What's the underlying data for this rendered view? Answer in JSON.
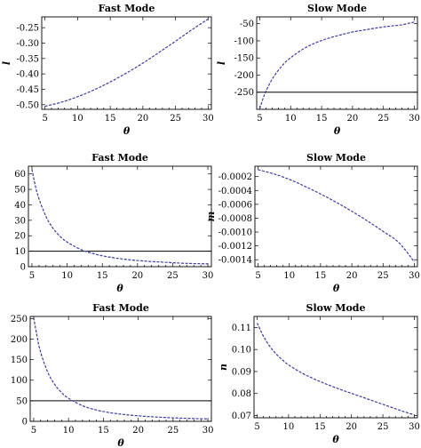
{
  "colors": {
    "curve": "#3a3aa8",
    "curve_shadow": "#9a9a9a",
    "frame": "#000000"
  },
  "chart_data": [
    {
      "type": "line",
      "title": "Fast Mode",
      "xlabel": "θ",
      "ylabel": "l",
      "xlim": [
        4.5,
        30.5
      ],
      "ylim": [
        -0.515,
        -0.215
      ],
      "xticks": [
        5,
        10,
        15,
        20,
        25,
        30
      ],
      "yticks": [
        -0.5,
        -0.45,
        -0.4,
        -0.35,
        -0.3,
        -0.25
      ],
      "ytick_labels": [
        "-0.50",
        "-0.45",
        "-0.40",
        "-0.35",
        "-0.30",
        "-0.25"
      ],
      "x": [
        5,
        7.5,
        10,
        12.5,
        15,
        17.5,
        20,
        22.5,
        25,
        27.5,
        30
      ],
      "y": [
        -0.505,
        -0.492,
        -0.474,
        -0.452,
        -0.426,
        -0.397,
        -0.365,
        -0.33,
        -0.294,
        -0.257,
        -0.222
      ],
      "hline": null
    },
    {
      "type": "line",
      "title": "Slow Mode",
      "xlabel": "θ",
      "ylabel": "l",
      "xlim": [
        4.5,
        30.5
      ],
      "ylim": [
        -300,
        -30
      ],
      "xticks": [
        5,
        10,
        15,
        20,
        25,
        30
      ],
      "yticks": [
        -250,
        -200,
        -150,
        -100,
        -50
      ],
      "ytick_labels": [
        "-250",
        "-200",
        "-150",
        "-100",
        "-50"
      ],
      "x": [
        5,
        5.5,
        6,
        7,
        8,
        9,
        10,
        12,
        14,
        16,
        18,
        20,
        22,
        24,
        26,
        28,
        30
      ],
      "y": [
        -298,
        -270,
        -247,
        -212,
        -186,
        -165,
        -149,
        -124,
        -106,
        -93,
        -83,
        -74,
        -68,
        -62,
        -57,
        -53,
        -45
      ],
      "hline": -250
    },
    {
      "type": "line",
      "title": "Fast Mode",
      "xlabel": "θ",
      "ylabel": "m",
      "xlim": [
        4.5,
        30.5
      ],
      "ylim": [
        0,
        65
      ],
      "xticks": [
        5,
        10,
        15,
        20,
        25,
        30
      ],
      "yticks": [
        0,
        10,
        20,
        30,
        40,
        50,
        60
      ],
      "ytick_labels": [
        "0",
        "10",
        "20",
        "30",
        "40",
        "50",
        "60"
      ],
      "x": [
        5,
        5.5,
        6,
        7,
        8,
        9,
        10,
        12,
        14,
        16,
        18,
        20,
        22,
        24,
        26,
        28,
        30
      ],
      "y": [
        63,
        52,
        44,
        32.4,
        24.8,
        19.6,
        15.9,
        11.0,
        8.1,
        6.2,
        4.9,
        4.0,
        3.3,
        2.8,
        2.3,
        2.0,
        1.8
      ],
      "hline": 10
    },
    {
      "type": "line",
      "title": "Slow Mode",
      "xlabel": "θ",
      "ylabel": "m",
      "xlim": [
        4.5,
        30.5
      ],
      "ylim": [
        -0.0015,
        -5e-05
      ],
      "xticks": [
        5,
        10,
        15,
        20,
        25,
        30
      ],
      "yticks": [
        -0.0002,
        -0.0004,
        -0.0006,
        -0.0008,
        -0.001,
        -0.0012,
        -0.0014
      ],
      "ytick_labels": [
        "-0.0002",
        "-0.0004",
        "-0.0006",
        "-0.0008",
        "-0.0010",
        "-0.0012",
        "-0.0014"
      ],
      "x": [
        5,
        7.5,
        10,
        12.5,
        15,
        17.5,
        20,
        22.5,
        25,
        27.5,
        30
      ],
      "y": [
        -0.0001,
        -0.00016,
        -0.00024,
        -0.00034,
        -0.00045,
        -0.00057,
        -0.0007,
        -0.00084,
        -0.00099,
        -0.00115,
        -0.00143
      ],
      "hline": null
    },
    {
      "type": "line",
      "title": "Fast Mode",
      "xlabel": "θ",
      "ylabel": "n",
      "xlim": [
        4.5,
        30.5
      ],
      "ylim": [
        0,
        255
      ],
      "xticks": [
        5,
        10,
        15,
        20,
        25,
        30
      ],
      "yticks": [
        0,
        50,
        100,
        150,
        200,
        250
      ],
      "ytick_labels": [
        "0",
        "50",
        "100",
        "150",
        "200",
        "250"
      ],
      "x": [
        5,
        5.5,
        6,
        7,
        8,
        9,
        10,
        12,
        14,
        16,
        18,
        20,
        22,
        24,
        26,
        28,
        30
      ],
      "y": [
        252,
        205,
        168,
        120,
        90,
        70,
        56,
        38,
        27.5,
        21,
        16.5,
        13.4,
        11,
        9.2,
        7.8,
        6.7,
        5.8
      ],
      "hline": 50
    },
    {
      "type": "line",
      "title": "Slow Mode",
      "xlabel": "θ",
      "ylabel": "n",
      "xlim": [
        4.5,
        30.5
      ],
      "ylim": [
        0.069,
        0.115
      ],
      "xticks": [
        5,
        10,
        15,
        20,
        25,
        30
      ],
      "yticks": [
        0.07,
        0.08,
        0.09,
        0.1,
        0.11
      ],
      "ytick_labels": [
        "0.07",
        "0.08",
        "0.09",
        "0.10",
        "0.11"
      ],
      "x": [
        5,
        6,
        7,
        8,
        9,
        10,
        12,
        14,
        16,
        18,
        20,
        22,
        24,
        26,
        28,
        30
      ],
      "y": [
        0.112,
        0.106,
        0.1015,
        0.098,
        0.0953,
        0.093,
        0.0895,
        0.0867,
        0.0843,
        0.0821,
        0.0801,
        0.0781,
        0.0761,
        0.0741,
        0.0721,
        0.0703
      ],
      "hline": null
    }
  ]
}
